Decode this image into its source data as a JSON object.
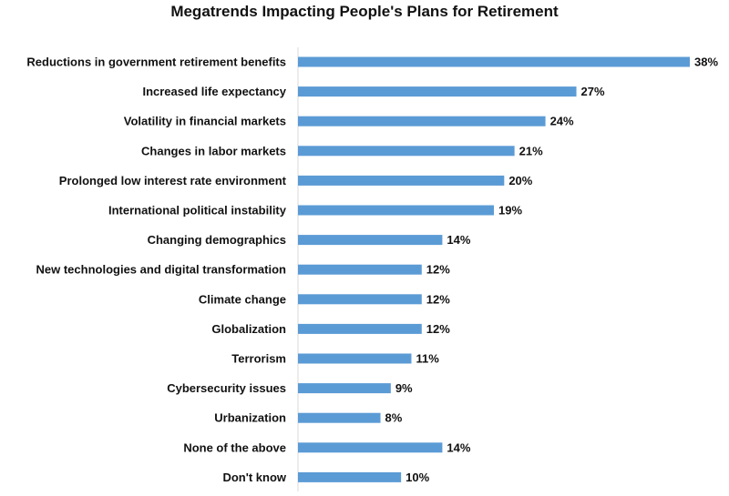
{
  "chart_data": {
    "type": "bar",
    "orientation": "horizontal",
    "title": "Megatrends Impacting People's Plans for Retirement",
    "categories": [
      "Reductions in government retirement benefits",
      "Increased life expectancy",
      "Volatility in financial markets",
      "Changes in labor markets",
      "Prolonged low interest rate environment",
      "International political instability",
      "Changing demographics",
      "New technologies and digital transformation",
      "Climate change",
      "Globalization",
      "Terrorism",
      "Cybersecurity issues",
      "Urbanization",
      "None of the above",
      "Don't know"
    ],
    "values": [
      38,
      27,
      24,
      21,
      20,
      19,
      14,
      12,
      12,
      12,
      11,
      9,
      8,
      14,
      10
    ],
    "value_labels": [
      "38%",
      "27%",
      "24%",
      "21%",
      "20%",
      "19%",
      "14%",
      "12%",
      "12%",
      "12%",
      "11%",
      "9%",
      "8%",
      "14%",
      "10%"
    ],
    "xlabel": "",
    "ylabel": "",
    "grid": false,
    "legend": "none",
    "bar_color": "#5B9BD5"
  }
}
